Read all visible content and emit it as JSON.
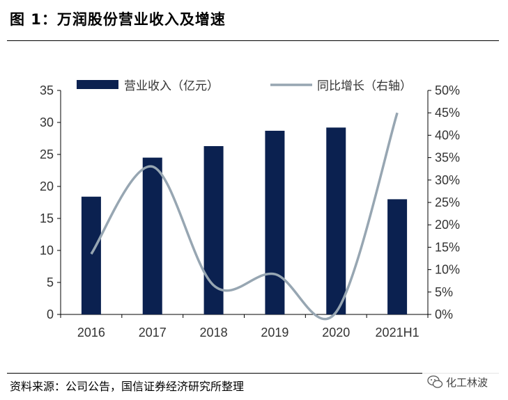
{
  "figure_title": "图 1：万润股份营业收入及增速",
  "source": "资料来源：公司公告，国信证券经济研究所整理",
  "watermark": "化工林波",
  "colors": {
    "bar": "#0b2150",
    "line": "#97a6b2",
    "axis": "#000000",
    "text": "#333333"
  },
  "chart_data": {
    "type": "bar",
    "categories": [
      "2016",
      "2017",
      "2018",
      "2019",
      "2020",
      "2021H1"
    ],
    "series": [
      {
        "name": "营业收入（亿元）",
        "type": "bar",
        "axis": "left",
        "values": [
          18.4,
          24.5,
          26.3,
          28.7,
          29.2,
          18.0
        ]
      },
      {
        "name": "同比增长（右轴）",
        "type": "line",
        "axis": "right",
        "values": [
          13.5,
          33.0,
          6.5,
          9.0,
          0.5,
          45.0
        ]
      }
    ],
    "ylim": [
      0,
      35
    ],
    "y_ticks": [
      "0",
      "5",
      "10",
      "15",
      "20",
      "25",
      "30",
      "35"
    ],
    "y2lim": [
      0,
      50
    ],
    "y2_ticks": [
      "0%",
      "5%",
      "10%",
      "15%",
      "20%",
      "25%",
      "30%",
      "35%",
      "40%",
      "45%",
      "50%"
    ],
    "legend": "top",
    "grid": false
  }
}
